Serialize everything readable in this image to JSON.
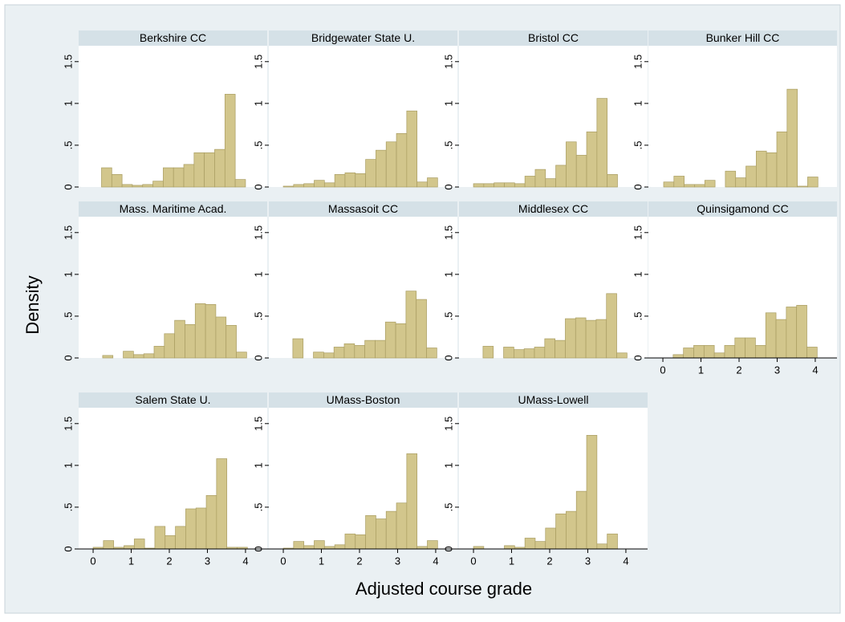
{
  "ylabel": "Density",
  "xlabel": "Adjusted course grade",
  "chart_data": [
    {
      "type": "histogram",
      "title": "Berkshire CC",
      "color": "#d2c68c",
      "bins": [
        0.22,
        0.49,
        0.76,
        1.03,
        1.3,
        1.57,
        1.84,
        2.11,
        2.38,
        2.65,
        2.92,
        3.19,
        3.46,
        3.73,
        4.0
      ],
      "values": [
        0.23,
        0.15,
        0.03,
        0.02,
        0.03,
        0.07,
        0.23,
        0.23,
        0.27,
        0.41,
        0.41,
        0.45,
        1.11,
        0.09
      ],
      "xlim": [
        -0.38,
        4.57
      ],
      "ylim": [
        0,
        1.69
      ],
      "yticks": [
        0,
        {
          "value": 0.5,
          "label": ".5"
        },
        1,
        1.5
      ]
    },
    {
      "type": "histogram",
      "title": "Bridgewater State U.",
      "color": "#d2c68c",
      "bins": [
        0,
        0.27,
        0.54,
        0.81,
        1.08,
        1.35,
        1.62,
        1.89,
        2.16,
        2.43,
        2.7,
        2.97,
        3.24,
        3.51,
        3.78,
        4.05
      ],
      "values": [
        0.01,
        0.03,
        0.04,
        0.08,
        0.05,
        0.15,
        0.17,
        0.16,
        0.33,
        0.44,
        0.54,
        0.64,
        0.91,
        0.06,
        0.11
      ],
      "xlim": [
        -0.38,
        4.57
      ],
      "ylim": [
        0,
        1.69
      ],
      "yticks": [
        0,
        {
          "value": 0.5,
          "label": ".5"
        },
        1,
        1.5
      ]
    },
    {
      "type": "histogram",
      "title": "Bristol CC",
      "color": "#d2c68c",
      "bins": [
        0,
        0.27,
        0.54,
        0.81,
        1.08,
        1.35,
        1.62,
        1.89,
        2.16,
        2.43,
        2.7,
        2.97,
        3.24,
        3.51,
        3.78
      ],
      "values": [
        0.04,
        0.04,
        0.05,
        0.05,
        0.04,
        0.13,
        0.21,
        0.1,
        0.26,
        0.54,
        0.38,
        0.66,
        1.06,
        0.15
      ],
      "xlim": [
        -0.38,
        4.57
      ],
      "ylim": [
        0,
        1.69
      ],
      "yticks": [
        0,
        {
          "value": 0.5,
          "label": ".5"
        },
        1,
        1.5
      ]
    },
    {
      "type": "histogram",
      "title": "Bunker Hill CC",
      "color": "#d2c68c",
      "bins": [
        0.02,
        0.29,
        0.56,
        0.83,
        1.1,
        1.37,
        1.64,
        1.91,
        2.18,
        2.45,
        2.72,
        2.99,
        3.26,
        3.53,
        3.8,
        4.07
      ],
      "values": [
        0.06,
        0.13,
        0.03,
        0.03,
        0.08,
        0,
        0.19,
        0.11,
        0.25,
        0.43,
        0.41,
        0.66,
        1.17,
        0.01,
        0.12
      ],
      "xlim": [
        -0.38,
        4.57
      ],
      "ylim": [
        0,
        1.69
      ],
      "yticks": [
        0,
        {
          "value": 0.5,
          "label": ".5"
        },
        1,
        1.5
      ]
    },
    {
      "type": "histogram",
      "title": "Mass. Maritime Acad.",
      "color": "#d2c68c",
      "bins": [
        0.25,
        0.52,
        0.79,
        1.06,
        1.33,
        1.6,
        1.87,
        2.14,
        2.41,
        2.68,
        2.95,
        3.22,
        3.49,
        3.76,
        4.03
      ],
      "values": [
        0.03,
        0,
        0.08,
        0.04,
        0.05,
        0.14,
        0.29,
        0.45,
        0.4,
        0.65,
        0.64,
        0.49,
        0.39,
        0.07
      ],
      "xlim": [
        -0.38,
        4.57
      ],
      "ylim": [
        0,
        1.69
      ],
      "yticks": [
        0,
        {
          "value": 0.5,
          "label": ".5"
        },
        1,
        1.5
      ]
    },
    {
      "type": "histogram",
      "title": "Massasoit CC",
      "color": "#d2c68c",
      "bins": [
        0.25,
        0.52,
        0.79,
        1.06,
        1.33,
        1.6,
        1.87,
        2.14,
        2.41,
        2.68,
        2.95,
        3.22,
        3.49,
        3.76,
        4.03
      ],
      "values": [
        0.23,
        0,
        0.07,
        0.06,
        0.13,
        0.17,
        0.15,
        0.21,
        0.21,
        0.43,
        0.41,
        0.8,
        0.7,
        0.12
      ],
      "xlim": [
        -0.38,
        4.57
      ],
      "ylim": [
        0,
        1.69
      ],
      "yticks": [
        0,
        {
          "value": 0.5,
          "label": ".5"
        },
        1,
        1.5
      ]
    },
    {
      "type": "histogram",
      "title": "Middlesex CC",
      "color": "#d2c68c",
      "bins": [
        0.25,
        0.52,
        0.79,
        1.06,
        1.33,
        1.6,
        1.87,
        2.14,
        2.41,
        2.68,
        2.95,
        3.22,
        3.49,
        3.76,
        4.03
      ],
      "values": [
        0.14,
        0,
        0.13,
        0.1,
        0.11,
        0.13,
        0.23,
        0.21,
        0.47,
        0.48,
        0.45,
        0.46,
        0.77,
        0.06
      ],
      "xlim": [
        -0.38,
        4.57
      ],
      "ylim": [
        0,
        1.69
      ],
      "yticks": [
        0,
        {
          "value": 0.5,
          "label": ".5"
        },
        1,
        1.5
      ]
    },
    {
      "type": "histogram",
      "title": "Quinsigamond CC",
      "color": "#d2c68c",
      "bins": [
        0.27,
        0.54,
        0.81,
        1.08,
        1.35,
        1.62,
        1.89,
        2.16,
        2.43,
        2.7,
        2.97,
        3.24,
        3.51,
        3.78,
        4.05
      ],
      "values": [
        0.04,
        0.12,
        0.15,
        0.15,
        0.06,
        0.15,
        0.24,
        0.24,
        0.15,
        0.54,
        0.46,
        0.61,
        0.63,
        0.13
      ],
      "xlim": [
        -0.38,
        4.57
      ],
      "ylim": [
        0,
        1.69
      ],
      "yticks": [
        0,
        {
          "value": 0.5,
          "label": ".5"
        },
        1,
        1.5
      ],
      "xticks": [
        0,
        1,
        2,
        3,
        4
      ]
    },
    {
      "type": "histogram",
      "title": "Salem State U.",
      "color": "#d2c68c",
      "bins": [
        0,
        0.27,
        0.54,
        0.81,
        1.08,
        1.35,
        1.62,
        1.89,
        2.16,
        2.43,
        2.7,
        2.97,
        3.24,
        3.51,
        3.78,
        4.05
      ],
      "values": [
        0.02,
        0.1,
        0.02,
        0.04,
        0.12,
        0.01,
        0.27,
        0.16,
        0.27,
        0.48,
        0.49,
        0.64,
        1.08,
        0.02,
        0.02
      ],
      "xlim": [
        -0.38,
        4.57
      ],
      "ylim": [
        0,
        1.69
      ],
      "yticks": [
        0,
        {
          "value": 0.5,
          "label": ".5"
        },
        1,
        1.5
      ],
      "xticks": [
        0,
        1,
        2,
        3,
        4
      ]
    },
    {
      "type": "histogram",
      "title": "UMass-Boston",
      "color": "#d2c68c",
      "bins": [
        0,
        0.27,
        0.54,
        0.81,
        1.08,
        1.35,
        1.62,
        1.89,
        2.16,
        2.43,
        2.7,
        2.97,
        3.24,
        3.51,
        3.78,
        4.05
      ],
      "values": [
        0.01,
        0.09,
        0.04,
        0.1,
        0.03,
        0.05,
        0.18,
        0.17,
        0.4,
        0.36,
        0.45,
        0.55,
        1.14,
        0.03,
        0.1
      ],
      "xlim": [
        -0.38,
        4.57
      ],
      "ylim": [
        0,
        1.69
      ],
      "yticks": [
        0,
        {
          "value": 0.5,
          "label": ".5"
        },
        1,
        1.5
      ],
      "xticks": [
        0,
        1,
        2,
        3,
        4
      ]
    },
    {
      "type": "histogram",
      "title": "UMass-Lowell",
      "color": "#d2c68c",
      "bins": [
        0,
        0.27,
        0.54,
        0.81,
        1.08,
        1.35,
        1.62,
        1.89,
        2.16,
        2.43,
        2.7,
        2.97,
        3.24,
        3.51,
        3.78
      ],
      "values": [
        0.03,
        0,
        0,
        0.04,
        0.02,
        0.13,
        0.09,
        0.25,
        0.42,
        0.45,
        0.69,
        1.36,
        0.06,
        0.18
      ],
      "xlim": [
        -0.38,
        4.57
      ],
      "ylim": [
        0,
        1.69
      ],
      "yticks": [
        0,
        {
          "value": 0.5,
          "label": ".5"
        },
        1,
        1.5
      ],
      "xticks": [
        0,
        1,
        2,
        3,
        4
      ]
    }
  ]
}
